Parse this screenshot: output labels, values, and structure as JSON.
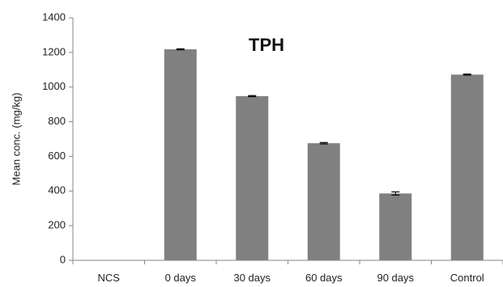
{
  "chart_data": {
    "type": "bar",
    "title": "TPH",
    "xlabel": "",
    "ylabel": "Mean conc. (mg/kg)",
    "categories": [
      "NCS",
      "0 days",
      "30 days",
      "60 days",
      "90 days",
      "Control"
    ],
    "values": [
      0,
      1218,
      948,
      676,
      386,
      1072
    ],
    "errors": [
      0,
      3,
      3,
      4,
      9,
      3
    ],
    "ylim": [
      0,
      1400
    ],
    "yticks": [
      "0",
      "200",
      "400",
      "600",
      "800",
      "1000",
      "1200",
      "1400"
    ],
    "grid": false,
    "legend": "none",
    "bar_color": "#808080"
  }
}
